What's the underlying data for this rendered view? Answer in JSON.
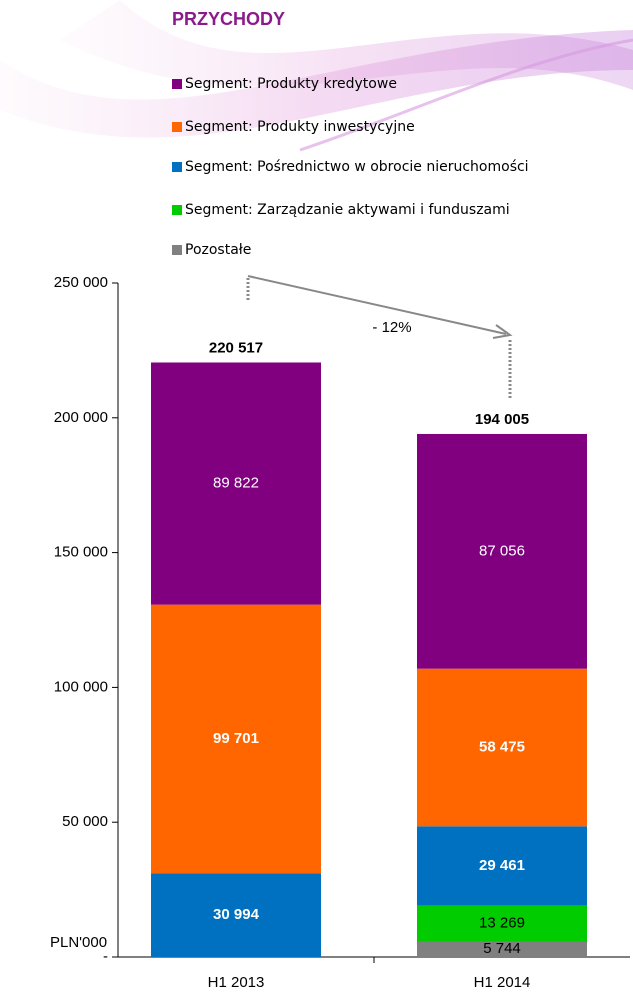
{
  "chart_data": {
    "type": "stacked-bar",
    "title": "PRZYCHODY",
    "unit_label": "PLN'000",
    "annotation": "- 12%",
    "categories": [
      "H1 2013",
      "H1 2014"
    ],
    "series": [
      {
        "name": "Segment: Produkty kredytowe",
        "color": "#800080",
        "values": [
          89822,
          87056
        ],
        "value_labels": [
          "89 822",
          "87 056"
        ]
      },
      {
        "name": "Segment: Produkty inwestycyjne",
        "color": "#ff6600",
        "values": [
          99701,
          58475
        ],
        "value_labels": [
          "99 701",
          "58 475"
        ]
      },
      {
        "name": "Segment: Pośrednictwo w obrocie nieruchomości",
        "color": "#0070c0",
        "values": [
          30994,
          29461
        ],
        "value_labels": [
          "30 994",
          "29 461"
        ]
      },
      {
        "name": "Segment: Zarządzanie aktywami i funduszami",
        "color": "#00cc00",
        "values": [
          null,
          13269
        ],
        "value_labels": [
          null,
          "13 269"
        ]
      },
      {
        "name": "Pozostałe",
        "color": "#808080",
        "values": [
          null,
          5744
        ],
        "value_labels": [
          null,
          "5 744"
        ]
      }
    ],
    "totals": [
      220517,
      194005
    ],
    "total_labels": [
      "220 517",
      "194 005"
    ],
    "ylim": [
      0,
      250000
    ],
    "yticks": [
      {
        "value": 0,
        "label": "-"
      },
      {
        "value": 50000,
        "label": "50 000"
      },
      {
        "value": 100000,
        "label": "100 000"
      },
      {
        "value": 150000,
        "label": "150 000"
      },
      {
        "value": 200000,
        "label": "200 000"
      },
      {
        "value": 250000,
        "label": "250 000"
      }
    ]
  }
}
